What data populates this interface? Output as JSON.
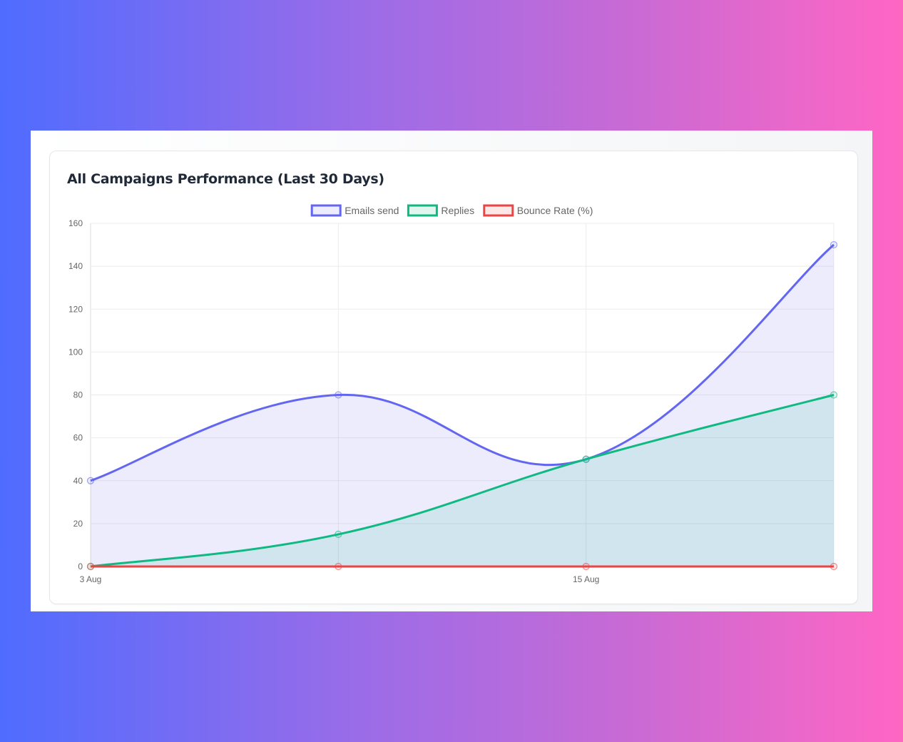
{
  "card": {
    "title": "All Campaigns Performance (Last 30 Days)"
  },
  "chart_data": {
    "type": "line",
    "title": "All Campaigns Performance (Last 30 Days)",
    "x_tick_labels": [
      "3 Aug",
      "15 Aug"
    ],
    "x_tick_indices": [
      0,
      2
    ],
    "point_count": 4,
    "ylim": [
      0,
      160
    ],
    "yticks": [
      0,
      20,
      40,
      60,
      80,
      100,
      120,
      140,
      160
    ],
    "grid": true,
    "legend": "top",
    "smooth": true,
    "filled": true,
    "series": [
      {
        "name": "Emails send",
        "values": [
          40,
          80,
          50,
          150
        ],
        "color": "#6366f1",
        "fill": "rgba(99,102,241,0.12)"
      },
      {
        "name": "Replies",
        "values": [
          0,
          15,
          50,
          80
        ],
        "color": "#10b981",
        "fill": "rgba(16,185,129,0.12)"
      },
      {
        "name": "Bounce Rate (%)",
        "values": [
          0,
          0,
          0,
          0
        ],
        "color": "#ef4444",
        "fill": "rgba(239,68,68,0.12)"
      }
    ]
  }
}
